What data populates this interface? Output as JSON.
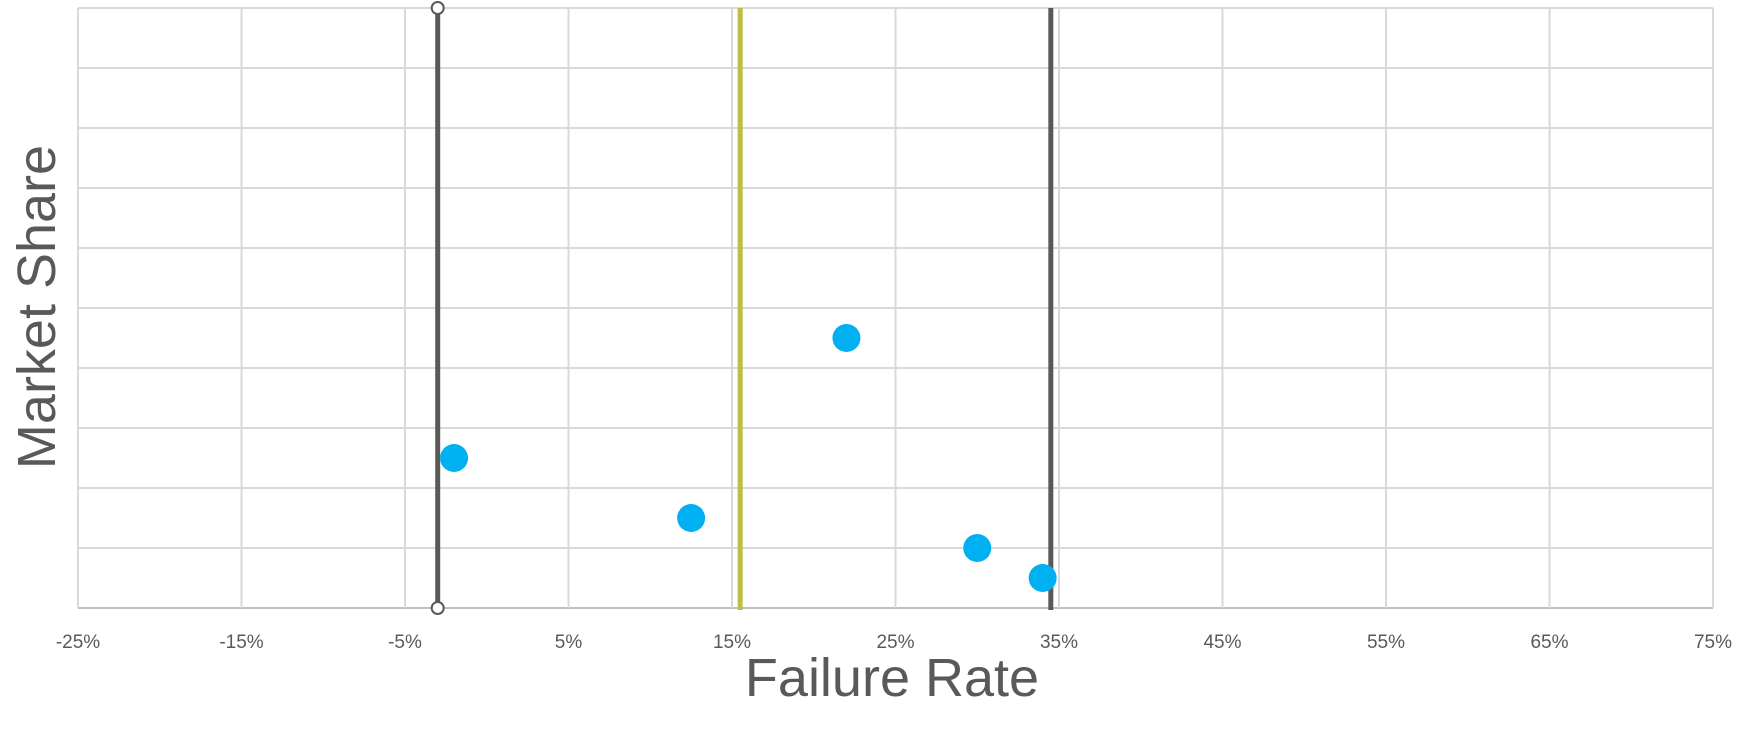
{
  "chart_data": {
    "type": "scatter",
    "title": "",
    "xlabel": "Failure Rate",
    "ylabel": "Market Share",
    "xlim": [
      -25,
      75
    ],
    "ylim": [
      0,
      10
    ],
    "x_ticks": [
      "-25%",
      "-15%",
      "-5%",
      "5%",
      "15%",
      "25%",
      "35%",
      "45%",
      "55%",
      "65%",
      "75%"
    ],
    "y_tick_labels_shown": false,
    "grid": true,
    "legend": "none",
    "series": [
      {
        "points": [
          {
            "x": -2,
            "y": 2.5
          },
          {
            "x": 12.5,
            "y": 1.5
          },
          {
            "x": 22,
            "y": 4.5
          },
          {
            "x": 30,
            "y": 1.0
          },
          {
            "x": 34,
            "y": 0.5
          }
        ]
      }
    ],
    "reference_lines": [
      {
        "x": -3,
        "color": "#595959",
        "end_markers": true
      },
      {
        "x": 15.5,
        "color": "#bfbf3f",
        "end_markers": false
      },
      {
        "x": 34.5,
        "color": "#595959",
        "end_markers": false
      }
    ],
    "colors": {
      "points": "#00b0f0",
      "grid": "#d9d9d9",
      "text": "#595959"
    }
  }
}
